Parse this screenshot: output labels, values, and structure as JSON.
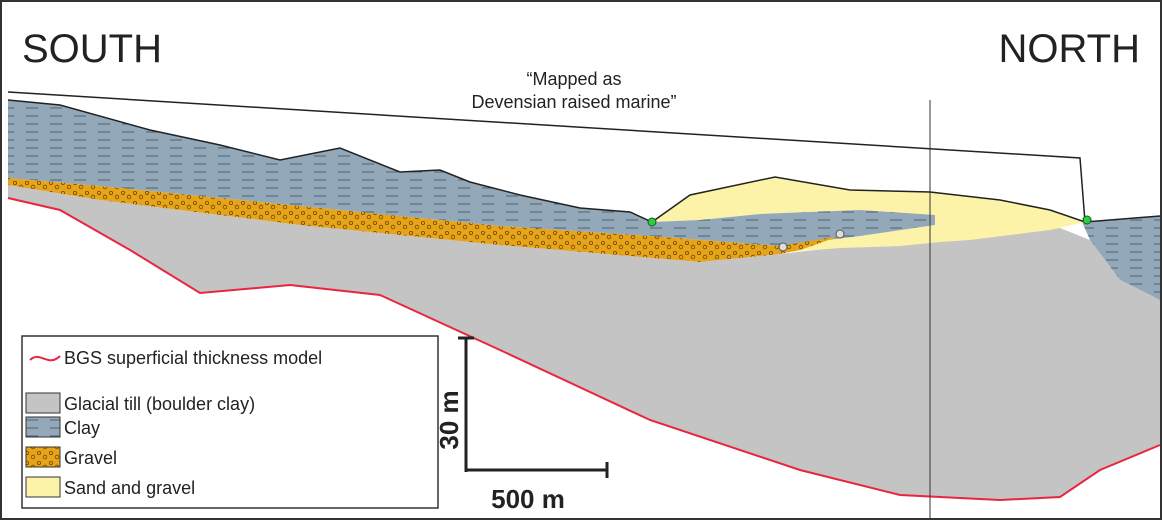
{
  "labels": {
    "south": "SOUTH",
    "north": "NORTH"
  },
  "annotation": [
    "“Mapped as",
    "Devensian raised marine”"
  ],
  "legend": [
    "BGS superficial thickness model",
    "Glacial till (boulder clay)",
    "Clay",
    "Gravel",
    "Sand and gravel"
  ],
  "scale_bar": {
    "vertical": "30 m",
    "horizontal": "500 m"
  }
}
